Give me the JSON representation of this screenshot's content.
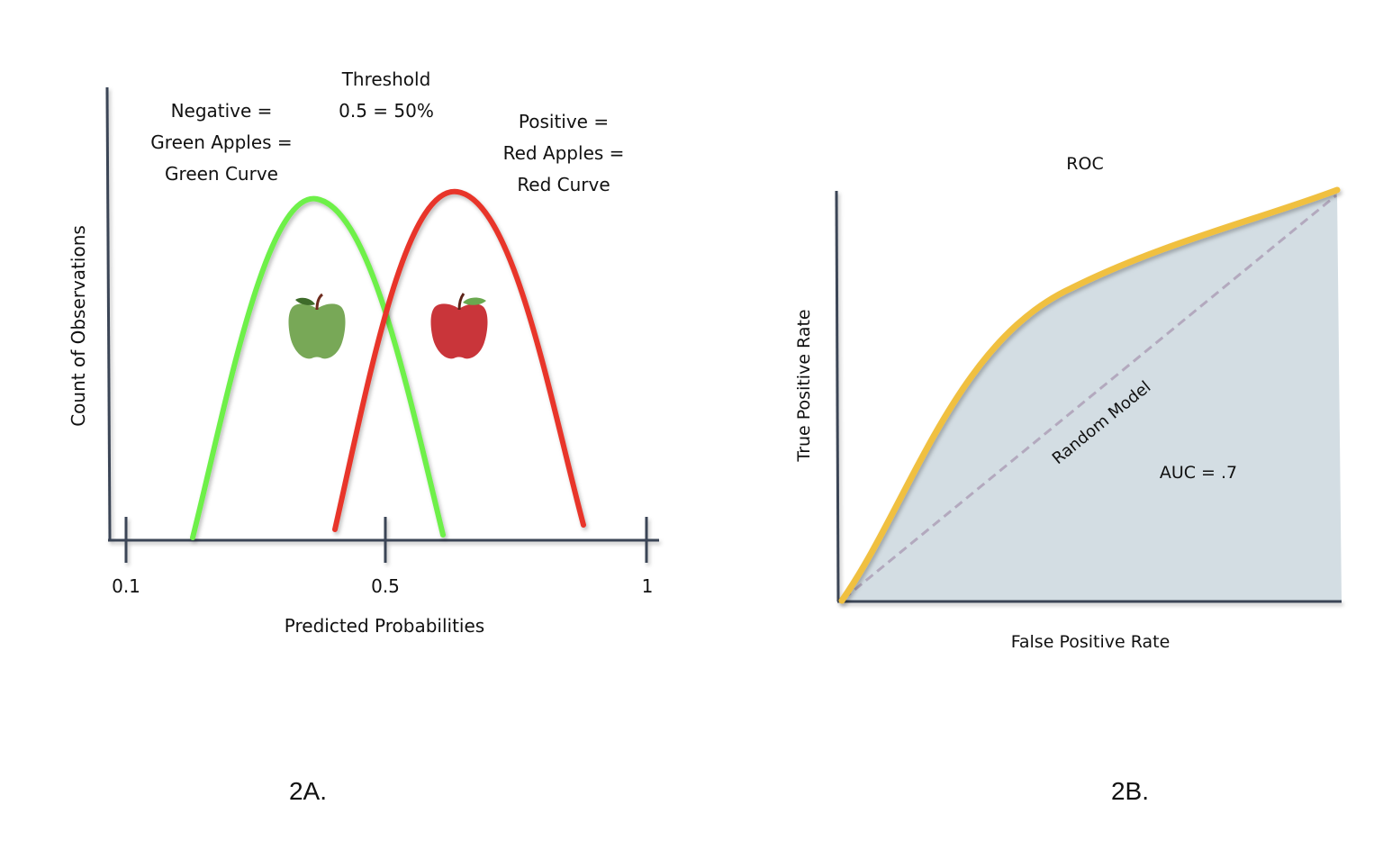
{
  "figure_2a": {
    "caption": "2A.",
    "y_axis_label": "Count of Observations",
    "x_axis_label": "Predicted Probabilities",
    "x_ticks": [
      "0.1",
      "0.5",
      "1"
    ],
    "threshold_label": [
      "Threshold",
      "0.5 = 50%"
    ],
    "negative_label": [
      "Negative =",
      "Green Apples =",
      "Green Curve"
    ],
    "positive_label": [
      "Positive =",
      "Red Apples =",
      "Red Curve"
    ],
    "colors": {
      "negative_curve": "#6ef04a",
      "positive_curve": "#e8352a",
      "threshold": "#2f3a4a",
      "axis": "#3b4556"
    },
    "icons": [
      "green-apple-icon",
      "red-apple-icon"
    ]
  },
  "figure_2b": {
    "caption": "2B.",
    "title": "ROC",
    "y_axis_label": "True Positive Rate",
    "x_axis_label": "False Positive Rate",
    "diagonal_label": "Random Model",
    "auc_label": "AUC = .7",
    "colors": {
      "roc_curve": "#f0c040",
      "area_fill": "#d3dde3",
      "diagonal": "#b3a9be",
      "axis": "#3b4556"
    }
  }
}
